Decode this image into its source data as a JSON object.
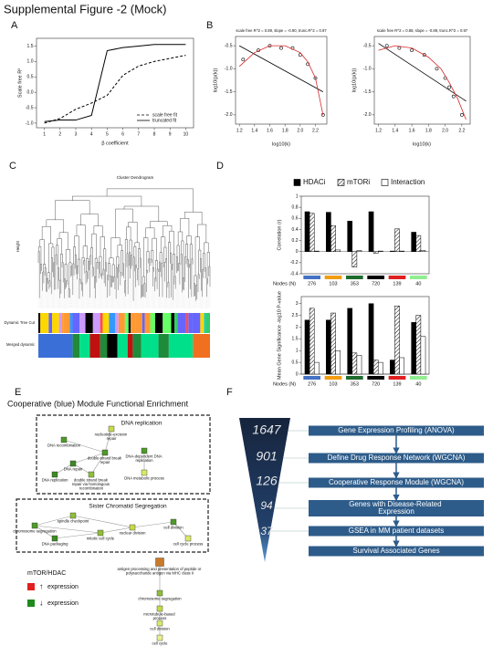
{
  "header": {
    "title": "Supplemental Figure -2 (Mock)"
  },
  "panel_labels": [
    "A",
    "B",
    "C",
    "D",
    "E",
    "F"
  ],
  "chart_data": [
    {
      "type": "line",
      "xlabel": "β coefficient",
      "ylabel": "Scale free R²",
      "x": [
        1,
        2,
        3,
        4,
        5,
        6,
        7,
        8,
        9,
        10
      ],
      "xlim": [
        0.5,
        10.5
      ],
      "xticks": [
        1,
        2,
        3,
        4,
        5,
        6,
        7,
        8,
        9,
        10
      ],
      "ylim": [
        -1.15,
        1.75
      ],
      "yticks": [
        {
          "value": -1,
          "label": "-1.0"
        },
        -0.5,
        {
          "value": 0,
          "label": "0.0"
        },
        0.5,
        {
          "value": 1,
          "label": "1.0"
        },
        1.5
      ],
      "legend": "lower right",
      "series": [
        {
          "name": "scale free fit",
          "color": "#000000",
          "dash": true,
          "values": [
            -1.0,
            -0.85,
            -0.55,
            -0.35,
            -0.1,
            0.55,
            0.85,
            1.0,
            1.1,
            1.2
          ]
        },
        {
          "name": "truncated fit",
          "color": "#000000",
          "dash": false,
          "values": [
            -0.95,
            -0.9,
            -0.9,
            -0.75,
            1.35,
            1.45,
            1.5,
            1.55,
            1.55,
            1.55
          ]
        }
      ]
    },
    {
      "type": "scatter",
      "title": "scale free R^2 = 0.89, slope = -0.90, trunc.R^2 = 0.97",
      "xlabel": "log10(k)",
      "ylabel": "log10(p(k))",
      "xlim": [
        1.15,
        2.35
      ],
      "xticks": [
        1.2,
        1.4,
        1.6,
        1.8,
        {
          "value": 2,
          "label": "2.0"
        },
        2.2
      ],
      "ylim": [
        -2.2,
        -0.3
      ],
      "yticks": [
        {
          "value": -2,
          "label": "-2.0"
        },
        -1.5,
        {
          "value": -1,
          "label": "-1.0"
        },
        -0.5
      ],
      "series": [
        {
          "color": "#000000",
          "mode": "points",
          "x": [
            1.25,
            1.45,
            1.6,
            1.75,
            1.9,
            2.0,
            2.1,
            2.2,
            2.3
          ],
          "y": [
            -0.8,
            -0.6,
            -0.5,
            -0.55,
            -0.55,
            -0.7,
            -0.9,
            -1.2,
            -2.0
          ]
        },
        {
          "color": "#000000",
          "mode": "line",
          "x": [
            1.2,
            2.3
          ],
          "y": [
            -0.5,
            -1.5
          ]
        },
        {
          "color": "#d62728",
          "mode": "line",
          "x": [
            1.2,
            1.4,
            1.6,
            1.8,
            2.0,
            2.1,
            2.2,
            2.3
          ],
          "y": [
            -0.95,
            -0.65,
            -0.5,
            -0.5,
            -0.65,
            -0.85,
            -1.2,
            -2.0
          ]
        }
      ]
    },
    {
      "type": "scatter",
      "title": "scale free R^2 = 0.88, slope = -0.89, trunc.R^2 = 0.97",
      "xlabel": "log10(k)",
      "ylabel": "log10(p(k))",
      "xlim": [
        1.15,
        2.3
      ],
      "xticks": [
        1.2,
        1.4,
        1.6,
        1.8,
        {
          "value": 2,
          "label": "2.0"
        },
        2.2
      ],
      "ylim": [
        -2.2,
        -0.3
      ],
      "yticks": [
        {
          "value": -2,
          "label": "-2.0"
        },
        -1.5,
        {
          "value": -1,
          "label": "-1.0"
        },
        -0.5
      ],
      "series": [
        {
          "color": "#000000",
          "mode": "points",
          "x": [
            1.3,
            1.45,
            1.6,
            1.75,
            1.9,
            2.0,
            2.05,
            2.1,
            2.2
          ],
          "y": [
            -0.5,
            -0.55,
            -0.6,
            -0.7,
            -1.0,
            -1.2,
            -1.4,
            -1.6,
            -2.0
          ]
        },
        {
          "color": "#000000",
          "mode": "line",
          "x": [
            1.2,
            2.25
          ],
          "y": [
            -0.45,
            -1.7
          ]
        },
        {
          "color": "#d62728",
          "mode": "line",
          "x": [
            1.2,
            1.4,
            1.6,
            1.8,
            1.95,
            2.05,
            2.15,
            2.25
          ],
          "y": [
            -0.6,
            -0.5,
            -0.55,
            -0.75,
            -1.0,
            -1.3,
            -1.65,
            -2.1
          ]
        }
      ]
    },
    {
      "type": "bar",
      "ylabel": "Correlation (r)",
      "xlabel": "Nodes (N)",
      "categories": [
        "276",
        "103",
        "353",
        "720",
        "139",
        "40"
      ],
      "category_colors": [
        "#4472c4",
        "#f39c12",
        "#1e6b2e",
        "#000000",
        "#e02020",
        "#90ee90"
      ],
      "ylim": [
        -0.4,
        1.0
      ],
      "yticks": [
        -0.4,
        -0.2,
        0,
        0.2,
        0.4,
        0.6,
        0.8,
        1
      ],
      "legend": "top",
      "series": [
        {
          "name": "HDACi",
          "color": "#000000",
          "hatch": false,
          "values": [
            0.72,
            0.71,
            0.55,
            0.72,
            0.01,
            0.35
          ]
        },
        {
          "name": "mTORi",
          "color": "#ffffff",
          "hatch": true,
          "values": [
            0.69,
            0.47,
            -0.28,
            -0.03,
            0.41,
            0.29
          ]
        },
        {
          "name": "Interaction",
          "color": "#ffffff",
          "hatch": false,
          "values": [
            0.01,
            0.03,
            0.02,
            0.01,
            0.01,
            0.02
          ]
        }
      ]
    },
    {
      "type": "bar",
      "ylabel": "Mean Gene Significance -log10 P-value",
      "xlabel": "Nodes (N)",
      "categories": [
        "276",
        "103",
        "353",
        "720",
        "139",
        "40"
      ],
      "category_colors": [
        "#4472c4",
        "#f39c12",
        "#1e6b2e",
        "#000000",
        "#e02020",
        "#90ee90"
      ],
      "ylim": [
        0,
        3.3
      ],
      "yticks": [
        0,
        0.5,
        1,
        1.5,
        2,
        2.5,
        3
      ],
      "series": [
        {
          "color": "#000000",
          "hatch": false,
          "values": [
            2.3,
            2.3,
            2.8,
            3.0,
            0.6,
            2.2
          ]
        },
        {
          "color": "#ffffff",
          "hatch": true,
          "values": [
            2.8,
            2.6,
            0.9,
            0.6,
            2.9,
            2.5
          ]
        },
        {
          "color": "#ffffff",
          "hatch": false,
          "values": [
            0.5,
            1.0,
            0.8,
            0.5,
            0.7,
            1.6
          ]
        }
      ]
    }
  ],
  "dendrogram": {
    "title": "Cluster Dendrogram",
    "ylabel": "Height",
    "rows": [
      "Dynamic Tree Cut",
      "Merged dynamic"
    ]
  },
  "enrichment": {
    "title": "Cooperative (blue) Module Functional Enrichment",
    "groups": [
      "DNA replication",
      "Sister Chromatid Segregation"
    ],
    "nodes": [
      {
        "label": "nucleotide-excision repair",
        "color": "#c8d94a"
      },
      {
        "label": "DNA recombination",
        "color": "#4f9a2a"
      },
      {
        "label": "double-strand break repair",
        "color": "#4f9a2a"
      },
      {
        "label": "DNA repair",
        "color": "#3d8a22"
      },
      {
        "label": "DNA replication",
        "color": "#3d8a22"
      },
      {
        "label": "double strand break repair via homologous recombination",
        "color": "#8fbf3a"
      },
      {
        "label": "DNA-dependent DNA replication",
        "color": "#4f9a2a"
      },
      {
        "label": "DNA metabolic process",
        "color": "#d9e86a"
      },
      {
        "label": "spindle checkpoint",
        "color": "#8fbf3a"
      },
      {
        "label": "chromosome segregation",
        "color": "#4f9a2a"
      },
      {
        "label": "DNA packaging",
        "color": "#3d8a22"
      },
      {
        "label": "mitotic cell cycle",
        "color": "#8fbf3a"
      },
      {
        "label": "nuclear division",
        "color": "#c8d94a"
      },
      {
        "label": "cell division",
        "color": "#4f9a2a"
      },
      {
        "label": "cell cycle process",
        "color": "#d9e86a"
      },
      {
        "label": "antigen processing and presentation of peptide or polysaccharide antigen via MHC class II",
        "color": "#c97a2a"
      },
      {
        "label": "chromosome segregation",
        "color": "#8fbf3a"
      },
      {
        "label": "microtubule-based process",
        "color": "#c8d94a"
      },
      {
        "label": "cell division",
        "color": "#d9e86a"
      },
      {
        "label": "cell cycle",
        "color": "#e8f08a"
      }
    ],
    "legend": {
      "title": "mTOR/HDAC",
      "items": [
        {
          "symbol": "↑",
          "label": "expression",
          "color": "#e02020"
        },
        {
          "symbol": "↓",
          "label": "expression",
          "color": "#1e8a1e"
        }
      ]
    }
  },
  "pipeline": {
    "counts": [
      "1647",
      "901",
      "126",
      "94",
      "37"
    ],
    "steps": [
      "Gene Expression Profiling (ANOVA)",
      "Define Drug Response Network (WGCNA)",
      "Cooperative Response Module (WGCNA)",
      "Genes with Disease-Related Expression",
      "GSEA in MM patient datasets",
      "Survival Associated Genes"
    ]
  }
}
